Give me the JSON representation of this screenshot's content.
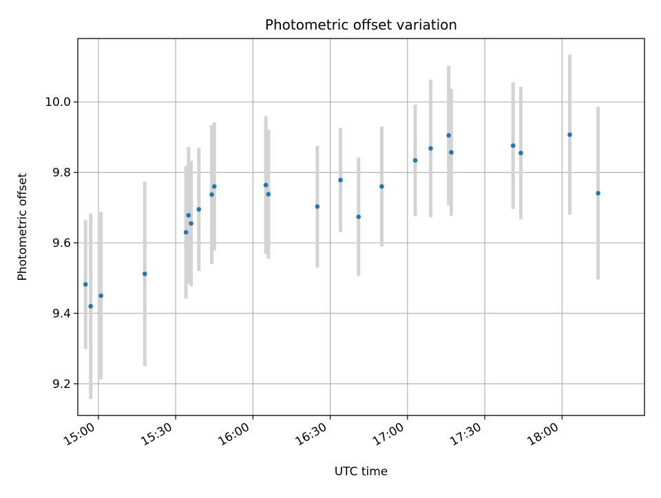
{
  "chart_data": {
    "type": "scatter",
    "title": "Photometric offset variation",
    "xlabel": "UTC time",
    "ylabel": "Photometric offset",
    "x_axis_kind": "time",
    "xlim": [
      "14:52",
      "18:32"
    ],
    "ylim": [
      9.11,
      10.18
    ],
    "x_ticks": [
      "15:00",
      "15:30",
      "16:00",
      "16:30",
      "17:00",
      "17:30",
      "18:00"
    ],
    "y_ticks": [
      9.2,
      9.4,
      9.6,
      9.8,
      10.0
    ],
    "y_tick_labels": [
      "9.2",
      "9.4",
      "9.6",
      "9.8",
      "10.0"
    ],
    "grid": true,
    "colors": {
      "point": "#1f77b4",
      "errorbar": "#d3d3d3",
      "grid": "#b0b0b0",
      "axis": "#000000"
    },
    "series": [
      {
        "points": [
          {
            "x": "14:55",
            "y": 9.482,
            "err": 0.183
          },
          {
            "x": "14:57",
            "y": 9.42,
            "err": 0.263
          },
          {
            "x": "15:01",
            "y": 9.45,
            "err": 0.238
          },
          {
            "x": "15:18",
            "y": 9.512,
            "err": 0.262
          },
          {
            "x": "15:34",
            "y": 9.63,
            "err": 0.188
          },
          {
            "x": "15:35",
            "y": 9.678,
            "err": 0.194
          },
          {
            "x": "15:36",
            "y": 9.655,
            "err": 0.178
          },
          {
            "x": "15:39",
            "y": 9.695,
            "err": 0.175
          },
          {
            "x": "15:44",
            "y": 9.737,
            "err": 0.197
          },
          {
            "x": "15:45",
            "y": 9.76,
            "err": 0.182
          },
          {
            "x": "16:05",
            "y": 9.764,
            "err": 0.195
          },
          {
            "x": "16:06",
            "y": 9.738,
            "err": 0.183
          },
          {
            "x": "16:25",
            "y": 9.703,
            "err": 0.173
          },
          {
            "x": "16:34",
            "y": 9.778,
            "err": 0.148
          },
          {
            "x": "16:41",
            "y": 9.674,
            "err": 0.168
          },
          {
            "x": "16:50",
            "y": 9.76,
            "err": 0.17
          },
          {
            "x": "17:03",
            "y": 9.834,
            "err": 0.158
          },
          {
            "x": "17:09",
            "y": 9.868,
            "err": 0.195
          },
          {
            "x": "17:16",
            "y": 9.905,
            "err": 0.198
          },
          {
            "x": "17:17",
            "y": 9.857,
            "err": 0.18
          },
          {
            "x": "17:41",
            "y": 9.876,
            "err": 0.18
          },
          {
            "x": "17:44",
            "y": 9.855,
            "err": 0.188
          },
          {
            "x": "18:03",
            "y": 9.907,
            "err": 0.227
          },
          {
            "x": "18:14",
            "y": 9.741,
            "err": 0.245
          }
        ]
      }
    ]
  }
}
